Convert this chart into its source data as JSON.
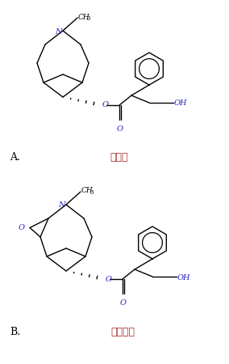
{
  "background_color": "#ffffff",
  "label_A": "A.",
  "label_B": "B.",
  "name_A": "阿托品",
  "name_B": "东萸菪碕",
  "name_color": "#b03030",
  "label_color": "#000000",
  "line_color": "#000000",
  "line_width": 1.0,
  "fig_width": 2.84,
  "fig_height": 4.5,
  "dpi": 100,
  "N_color": "#2020c0",
  "O_color": "#2020c0"
}
